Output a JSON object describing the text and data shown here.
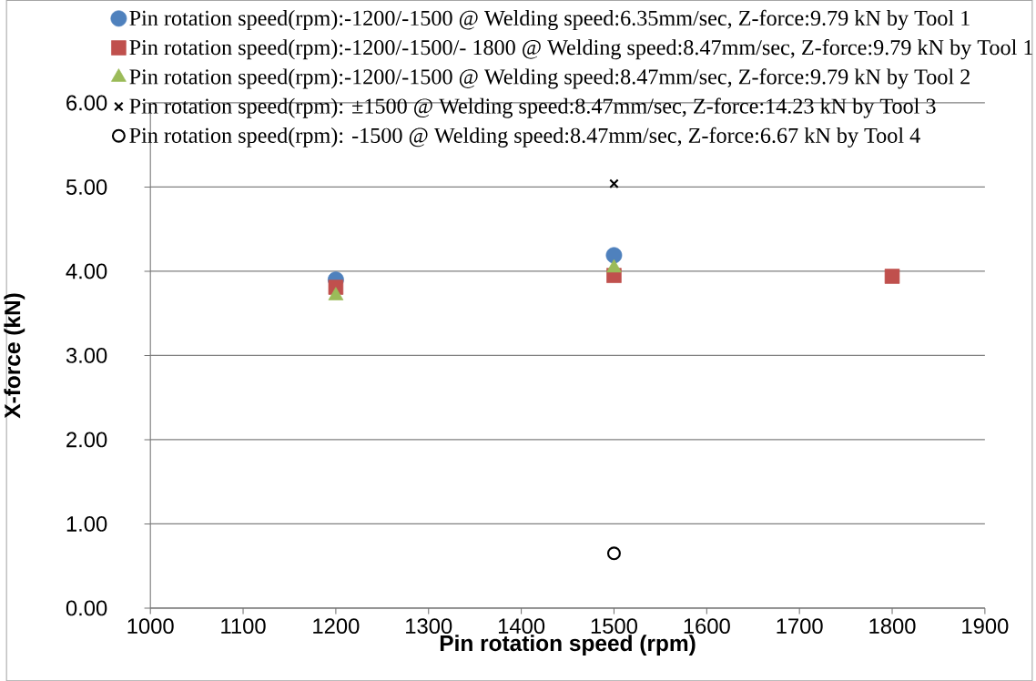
{
  "chart_data": {
    "type": "scatter",
    "xlabel": "Pin rotation speed (rpm)",
    "ylabel": "X-force (kN)",
    "xlim": [
      1000,
      1900
    ],
    "xticks": [
      1000,
      1100,
      1200,
      1300,
      1400,
      1500,
      1600,
      1700,
      1800,
      1900
    ],
    "ylim": [
      0,
      6
    ],
    "yticks": [
      {
        "value": 0,
        "label": "0.00"
      },
      {
        "value": 1,
        "label": "1.00"
      },
      {
        "value": 2,
        "label": "2.00"
      },
      {
        "value": 3,
        "label": "3.00"
      },
      {
        "value": 4,
        "label": "4.00"
      },
      {
        "value": 5,
        "label": "5.00"
      },
      {
        "value": 6,
        "label": "6.00"
      }
    ],
    "grid": "y",
    "legend": "top",
    "series": [
      {
        "name": "Pin rotation speed(rpm):-1200/-1500 @ Welding speed:6.35mm/sec, Z-force:9.79 kN by Tool 1",
        "color": "#4f81bd",
        "marker": "circle",
        "x": [
          1200,
          1500
        ],
        "values": [
          3.9,
          4.19
        ]
      },
      {
        "name": "Pin rotation speed(rpm):-1200/-1500/- 1800 @ Welding speed:8.47mm/sec, Z-force:9.79 kN by Tool 1",
        "color": "#c0504d",
        "marker": "square",
        "x": [
          1200,
          1500,
          1800
        ],
        "values": [
          3.81,
          3.95,
          3.94
        ]
      },
      {
        "name": "Pin rotation speed(rpm):-1200/-1500 @ Welding speed:8.47mm/sec, Z-force:9.79 kN by Tool 2",
        "color": "#9bbb59",
        "marker": "triangle",
        "x": [
          1200,
          1500
        ],
        "values": [
          3.71,
          4.04
        ]
      },
      {
        "name": "Pin rotation speed(rpm): ±1500 @ Welding speed:8.47mm/sec, Z-force:14.23 kN by Tool 3",
        "color": "#000000",
        "marker": "cross",
        "x": [
          1500
        ],
        "values": [
          5.04
        ]
      },
      {
        "name": "Pin rotation speed(rpm): -1500 @ Welding speed:8.47mm/sec, Z-force:6.67 kN by Tool 4",
        "color": "#000000",
        "marker": "circle",
        "x": [
          1500
        ],
        "values": [
          0.65
        ]
      }
    ]
  }
}
